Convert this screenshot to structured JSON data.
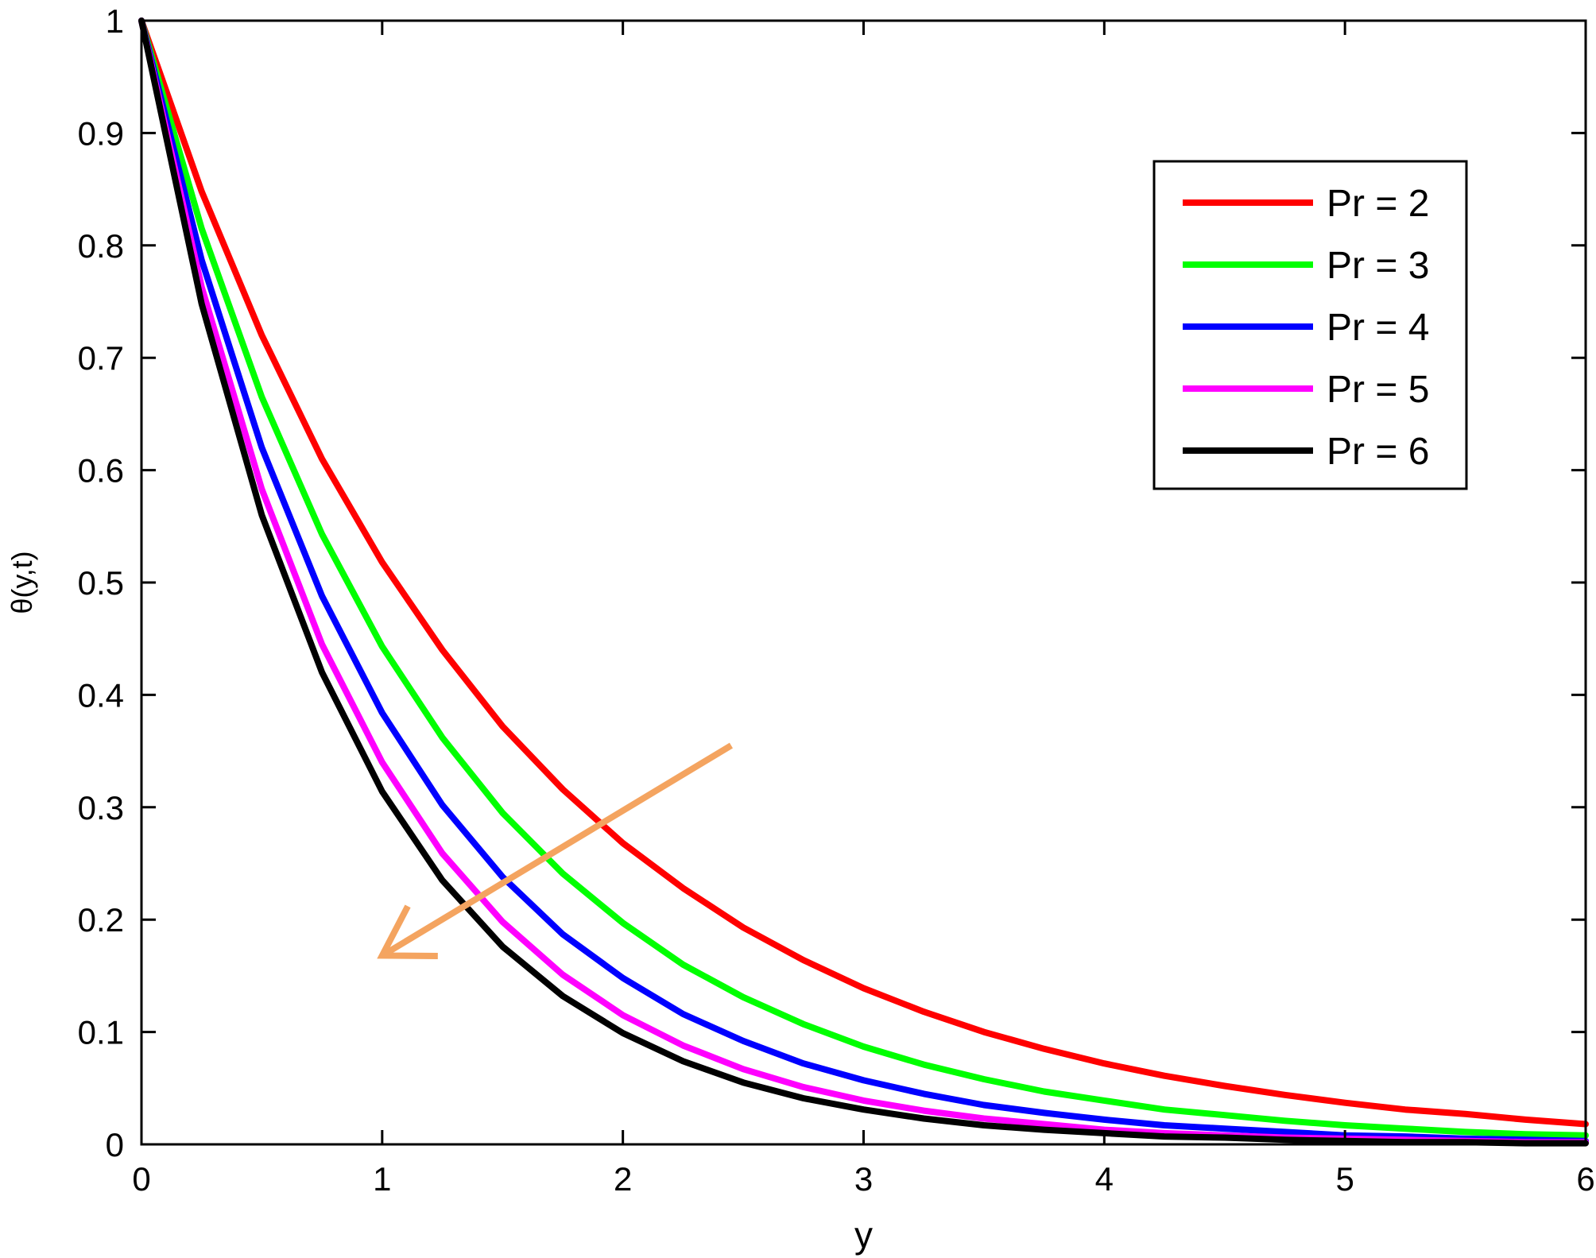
{
  "chart_data": {
    "type": "line",
    "title": "",
    "xlabel": "y",
    "ylabel": "θ(y,t)",
    "xlim": [
      0,
      6
    ],
    "ylim": [
      0,
      1
    ],
    "x_ticks": [
      "0",
      "1",
      "2",
      "3",
      "4",
      "5",
      "6"
    ],
    "y_ticks": [
      "0",
      "0.1",
      "0.2",
      "0.3",
      "0.4",
      "0.5",
      "0.6",
      "0.7",
      "0.8",
      "0.9",
      "1"
    ],
    "grid": false,
    "legend_position": "top-right",
    "x": [
      0,
      0.25,
      0.5,
      0.75,
      1.0,
      1.25,
      1.5,
      1.75,
      2.0,
      2.25,
      2.5,
      2.75,
      3.0,
      3.25,
      3.5,
      3.75,
      4.0,
      4.25,
      4.5,
      4.75,
      5.0,
      5.25,
      5.5,
      5.75,
      6.0
    ],
    "series": [
      {
        "name": "Pr = 2",
        "color": "#ff0000",
        "values": [
          1.0,
          0.848,
          0.72,
          0.61,
          0.518,
          0.44,
          0.372,
          0.316,
          0.268,
          0.228,
          0.193,
          0.164,
          0.139,
          0.118,
          0.1,
          0.085,
          0.072,
          0.061,
          0.052,
          0.044,
          0.037,
          0.031,
          0.027,
          0.022,
          0.018
        ]
      },
      {
        "name": "Pr = 3",
        "color": "#00ff00",
        "values": [
          1.0,
          0.815,
          0.665,
          0.543,
          0.443,
          0.362,
          0.295,
          0.241,
          0.197,
          0.16,
          0.131,
          0.107,
          0.087,
          0.071,
          0.058,
          0.047,
          0.039,
          0.031,
          0.026,
          0.021,
          0.017,
          0.014,
          0.011,
          0.009,
          0.008
        ]
      },
      {
        "name": "Pr = 4",
        "color": "#0000ff",
        "values": [
          1.0,
          0.787,
          0.62,
          0.488,
          0.384,
          0.302,
          0.238,
          0.187,
          0.148,
          0.116,
          0.092,
          0.072,
          0.057,
          0.045,
          0.035,
          0.028,
          0.022,
          0.017,
          0.014,
          0.011,
          0.008,
          0.007,
          0.005,
          0.004,
          0.003
        ]
      },
      {
        "name": "Pr = 5",
        "color": "#ff00ff",
        "values": [
          1.0,
          0.763,
          0.583,
          0.445,
          0.34,
          0.259,
          0.198,
          0.151,
          0.115,
          0.088,
          0.067,
          0.051,
          0.039,
          0.03,
          0.023,
          0.018,
          0.013,
          0.01,
          0.008,
          0.006,
          0.005,
          0.004,
          0.003,
          0.002,
          0.002
        ]
      },
      {
        "name": "Pr = 6",
        "color": "#000000",
        "values": [
          1.0,
          0.748,
          0.56,
          0.42,
          0.314,
          0.235,
          0.176,
          0.132,
          0.099,
          0.074,
          0.055,
          0.041,
          0.031,
          0.023,
          0.017,
          0.013,
          0.01,
          0.007,
          0.006,
          0.004,
          0.003,
          0.002,
          0.002,
          0.001,
          0.001
        ]
      }
    ],
    "annotations": [
      {
        "type": "arrow",
        "color": "#f4a460",
        "from": [
          2.45,
          0.355
        ],
        "to": [
          1.0,
          0.168
        ],
        "meaning": "direction of increasing Pr"
      }
    ]
  }
}
